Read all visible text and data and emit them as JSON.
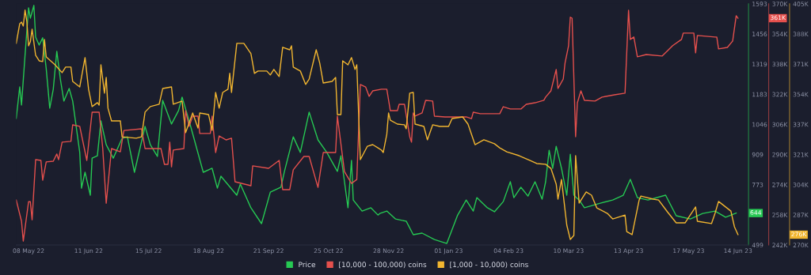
{
  "chart_data": {
    "type": "line",
    "legend": "bottom",
    "xlim": [
      "2022-05-01",
      "2023-06-20"
    ],
    "xticks": [
      {
        "value": "2022-05-08",
        "label": "08 May 22"
      },
      {
        "value": "2022-06-11",
        "label": "11 Jun 22"
      },
      {
        "value": "2022-07-15",
        "label": "15 Jul 22"
      },
      {
        "value": "2022-08-18",
        "label": "18 Aug 22"
      },
      {
        "value": "2022-09-21",
        "label": "21 Sep 22"
      },
      {
        "value": "2022-10-25",
        "label": "25 Oct 22"
      },
      {
        "value": "2022-11-28",
        "label": "28 Nov 22"
      },
      {
        "value": "2023-01-01",
        "label": "01 Jan 23"
      },
      {
        "value": "2023-02-04",
        "label": "04 Feb 23"
      },
      {
        "value": "2023-03-10",
        "label": "10 Mar 23"
      },
      {
        "value": "2023-04-13",
        "label": "13 Apr 23"
      },
      {
        "value": "2023-05-17",
        "label": "17 May 23"
      },
      {
        "value": "2023-06-14",
        "label": "14 Jun 23"
      }
    ],
    "ylim": [
      499,
      1593
    ],
    "yticks": [
      499,
      {
        "value": 772.5,
        "label": "773"
      },
      {
        "value": 909.25,
        "label": "909"
      },
      1046,
      {
        "value": 1182.75,
        "label": "1183"
      },
      {
        "value": 1319.5,
        "label": "1319"
      },
      {
        "value": 1456.25,
        "label": "1456"
      },
      1593
    ],
    "y2lim": [
      242000,
      370000
    ],
    "y2ticks": [
      {
        "value": 242000,
        "label": "242K"
      },
      {
        "value": 258000,
        "label": "258K"
      },
      {
        "value": 274000,
        "label": "274K"
      },
      {
        "value": 290000,
        "label": "290K"
      },
      {
        "value": 306000,
        "label": "306K"
      },
      {
        "value": 322000,
        "label": "322K"
      },
      {
        "value": 338000,
        "label": "338K"
      },
      {
        "value": 354000,
        "label": "354K"
      },
      {
        "value": 370000,
        "label": "370K"
      }
    ],
    "y3lim": [
      270000,
      405000
    ],
    "y3ticks": [
      {
        "value": 270000,
        "label": "270K"
      },
      {
        "value": 286875,
        "label": "287K"
      },
      {
        "value": 303750,
        "label": "304K"
      },
      {
        "value": 320625,
        "label": "321K"
      },
      {
        "value": 337500,
        "label": "337K"
      },
      {
        "value": 354375,
        "label": "354K"
      },
      {
        "value": 371250,
        "label": "371K"
      },
      {
        "value": 388125,
        "label": "388K"
      },
      {
        "value": 405000,
        "label": "405K"
      }
    ],
    "annotations": [
      "644",
      "361K",
      "276K"
    ],
    "series": [
      {
        "name": "Price",
        "color": "#26c953",
        "axis": "y",
        "x": [
          "2022-05-01",
          "2022-05-03",
          "2022-05-04",
          "2022-05-06",
          "2022-05-08",
          "2022-05-09",
          "2022-05-11",
          "2022-05-12",
          "2022-05-14",
          "2022-05-16",
          "2022-05-18",
          "2022-05-20",
          "2022-05-22",
          "2022-05-24",
          "2022-05-26",
          "2022-05-28",
          "2022-05-31",
          "2022-06-02",
          "2022-06-06",
          "2022-06-07",
          "2022-06-09",
          "2022-06-12",
          "2022-06-13",
          "2022-06-16",
          "2022-06-18",
          "2022-06-21",
          "2022-06-25",
          "2022-06-30",
          "2022-07-03",
          "2022-07-07",
          "2022-07-13",
          "2022-07-16",
          "2022-07-20",
          "2022-07-23",
          "2022-07-28",
          "2022-08-01",
          "2022-08-03",
          "2022-08-07",
          "2022-08-15",
          "2022-08-20",
          "2022-08-23",
          "2022-08-25",
          "2022-09-03",
          "2022-09-05",
          "2022-09-11",
          "2022-09-17",
          "2022-09-22",
          "2022-09-28",
          "2022-09-30",
          "2022-10-05",
          "2022-10-09",
          "2022-10-14",
          "2022-10-19",
          "2022-10-24",
          "2022-10-30",
          "2022-11-01",
          "2022-11-02",
          "2022-11-05",
          "2022-11-07",
          "2022-11-08",
          "2022-11-13",
          "2022-11-18",
          "2022-11-22",
          "2022-11-23",
          "2022-11-27",
          "2022-12-02",
          "2022-12-08",
          "2022-12-12",
          "2022-12-17",
          "2022-12-24",
          "2022-12-31",
          "2023-01-06",
          "2023-01-11",
          "2023-01-15",
          "2023-01-17",
          "2023-01-23",
          "2023-01-27",
          "2023-02-01",
          "2023-02-05",
          "2023-02-07",
          "2023-02-11",
          "2023-02-15",
          "2023-02-19",
          "2023-02-23",
          "2023-02-25",
          "2023-02-27",
          "2023-03-01",
          "2023-03-03",
          "2023-03-06",
          "2023-03-09",
          "2023-03-11",
          "2023-03-13",
          "2023-03-16",
          "2023-03-19",
          "2023-03-28",
          "2023-04-04",
          "2023-04-10",
          "2023-04-14",
          "2023-04-18",
          "2023-04-24",
          "2023-05-04",
          "2023-05-10",
          "2023-05-18",
          "2023-05-25",
          "2023-06-01",
          "2023-06-07",
          "2023-06-13"
        ],
        "values": [
          1073,
          1216,
          1134,
          1360,
          1575,
          1528,
          1586,
          1442,
          1406,
          1439,
          1299,
          1120,
          1206,
          1378,
          1252,
          1152,
          1209,
          1152,
          919,
          757,
          829,
          725,
          893,
          904,
          1062,
          954,
          893,
          983,
          990,
          829,
          1037,
          954,
          901,
          1155,
          1048,
          1109,
          1170,
          1062,
          829,
          847,
          757,
          811,
          725,
          775,
          668,
          596,
          739,
          761,
          833,
          990,
          919,
          1102,
          976,
          919,
          833,
          904,
          847,
          668,
          883,
          703,
          653,
          668,
          635,
          642,
          653,
          617,
          607,
          546,
          553,
          524,
          506,
          632,
          703,
          653,
          714,
          668,
          650,
          696,
          786,
          714,
          761,
          721,
          786,
          707,
          786,
          929,
          847,
          947,
          847,
          725,
          911,
          725,
          703,
          668,
          689,
          703,
          725,
          797,
          714,
          703,
          725,
          632,
          617,
          642,
          653,
          625,
          644
        ]
      },
      {
        "name": "[10,000 - 100,000) coins",
        "color": "#e5504d",
        "axis": "y2",
        "x": [
          "2022-05-01",
          "2022-05-04",
          "2022-05-05",
          "2022-05-08",
          "2022-05-09",
          "2022-05-10",
          "2022-05-12",
          "2022-05-15",
          "2022-05-16",
          "2022-05-18",
          "2022-05-22",
          "2022-05-24",
          "2022-05-25",
          "2022-05-27",
          "2022-06-01",
          "2022-06-02",
          "2022-06-06",
          "2022-06-10",
          "2022-06-13",
          "2022-06-17",
          "2022-06-19",
          "2022-06-21",
          "2022-06-24",
          "2022-06-29",
          "2022-07-01",
          "2022-07-11",
          "2022-07-13",
          "2022-07-22",
          "2022-07-24",
          "2022-07-26",
          "2022-07-27",
          "2022-07-28",
          "2022-07-29",
          "2022-08-04",
          "2022-08-05",
          "2022-08-07",
          "2022-08-09",
          "2022-08-12",
          "2022-08-13",
          "2022-08-19",
          "2022-08-20",
          "2022-08-22",
          "2022-08-24",
          "2022-08-28",
          "2022-08-31",
          "2022-09-02",
          "2022-09-11",
          "2022-09-12",
          "2022-09-21",
          "2022-09-27",
          "2022-09-29",
          "2022-10-03",
          "2022-10-05",
          "2022-10-11",
          "2022-10-14",
          "2022-10-19",
          "2022-10-22",
          "2022-10-29",
          "2022-10-30",
          "2022-11-03",
          "2022-11-07",
          "2022-11-10",
          "2022-11-12",
          "2022-11-15",
          "2022-11-17",
          "2022-11-19",
          "2022-11-24",
          "2022-11-27",
          "2022-11-29",
          "2022-12-03",
          "2022-12-04",
          "2022-12-07",
          "2022-12-10",
          "2022-12-11",
          "2022-12-12",
          "2022-12-13",
          "2022-12-17",
          "2022-12-19",
          "2022-12-23",
          "2022-12-24",
          "2022-12-30",
          "2023-01-11",
          "2023-01-14",
          "2023-01-15",
          "2023-01-19",
          "2023-01-30",
          "2023-02-01",
          "2023-02-05",
          "2023-02-11",
          "2023-02-14",
          "2023-02-19",
          "2023-02-24",
          "2023-02-25",
          "2023-02-28",
          "2023-03-03",
          "2023-03-04",
          "2023-03-07",
          "2023-03-08",
          "2023-03-10",
          "2023-03-11",
          "2023-03-12",
          "2023-03-14",
          "2023-03-15",
          "2023-03-17",
          "2023-03-19",
          "2023-03-25",
          "2023-03-29",
          "2023-04-05",
          "2023-04-11",
          "2023-04-13",
          "2023-04-14",
          "2023-04-16",
          "2023-04-18",
          "2023-04-23",
          "2023-05-02",
          "2023-05-08",
          "2023-05-13",
          "2023-05-14",
          "2023-05-20",
          "2023-05-21",
          "2023-05-22",
          "2023-06-01",
          "2023-06-02",
          "2023-06-03",
          "2023-06-08",
          "2023-06-11",
          "2023-06-13",
          "2023-06-14"
        ],
        "values": [
          265900,
          254600,
          244100,
          265000,
          265000,
          255400,
          287300,
          286900,
          276400,
          286100,
          286500,
          290300,
          287300,
          296600,
          297000,
          305800,
          305000,
          286900,
          312500,
          312500,
          293600,
          264200,
          293200,
          291500,
          302800,
          303700,
          293200,
          293200,
          284800,
          284800,
          296600,
          283500,
          292400,
          293200,
          313300,
          305000,
          310400,
          310400,
          301200,
          301200,
          310400,
          291100,
          299900,
          297800,
          298700,
          275600,
          273500,
          284000,
          282700,
          286900,
          271400,
          271400,
          281900,
          289000,
          289000,
          272600,
          291100,
          291100,
          310400,
          281000,
          274700,
          276800,
          327200,
          325900,
          320900,
          323800,
          324700,
          324700,
          313300,
          313300,
          316700,
          316700,
          299500,
          296600,
          312100,
          310400,
          312100,
          318800,
          318400,
          310400,
          310000,
          310000,
          309100,
          312500,
          311700,
          311700,
          315400,
          314200,
          314200,
          316700,
          317500,
          318800,
          320500,
          323800,
          335200,
          325100,
          330100,
          338500,
          347800,
          362900,
          362400,
          299500,
          317500,
          323800,
          318800,
          318400,
          320500,
          321700,
          322600,
          366600,
          351100,
          352400,
          341900,
          343100,
          342300,
          347800,
          351100,
          354500,
          354500,
          344000,
          353200,
          352400,
          352400,
          346100,
          346900,
          350300,
          363700,
          362400
        ]
      },
      {
        "name": "[1,000 - 10,000) coins",
        "color": "#f2b630",
        "axis": "y3",
        "x": [
          "2022-05-01",
          "2022-05-03",
          "2022-05-04",
          "2022-05-05",
          "2022-05-06",
          "2022-05-07",
          "2022-05-08",
          "2022-05-09",
          "2022-05-10",
          "2022-05-12",
          "2022-05-14",
          "2022-05-16",
          "2022-05-17",
          "2022-05-18",
          "2022-05-23",
          "2022-05-25",
          "2022-05-27",
          "2022-05-29",
          "2022-06-01",
          "2022-06-02",
          "2022-06-06",
          "2022-06-09",
          "2022-06-11",
          "2022-06-13",
          "2022-06-16",
          "2022-06-17",
          "2022-06-18",
          "2022-06-20",
          "2022-06-21",
          "2022-06-22",
          "2022-06-24",
          "2022-06-29",
          "2022-06-30",
          "2022-07-08",
          "2022-07-11",
          "2022-07-13",
          "2022-07-16",
          "2022-07-21",
          "2022-07-23",
          "2022-07-28",
          "2022-07-29",
          "2022-08-03",
          "2022-08-05",
          "2022-08-09",
          "2022-08-12",
          "2022-08-13",
          "2022-08-18",
          "2022-08-20",
          "2022-08-22",
          "2022-08-24",
          "2022-08-26",
          "2022-08-29",
          "2022-08-30",
          "2022-08-31",
          "2022-09-03",
          "2022-09-07",
          "2022-09-11",
          "2022-09-13",
          "2022-09-15",
          "2022-09-20",
          "2022-09-22",
          "2022-09-24",
          "2022-09-27",
          "2022-09-29",
          "2022-10-03",
          "2022-10-04",
          "2022-10-05",
          "2022-10-09",
          "2022-10-12",
          "2022-10-14",
          "2022-10-18",
          "2022-10-20",
          "2022-10-22",
          "2022-10-27",
          "2022-10-29",
          "2022-10-30",
          "2022-11-01",
          "2022-11-02",
          "2022-11-05",
          "2022-11-07",
          "2022-11-09",
          "2022-11-10",
          "2022-11-12",
          "2022-11-16",
          "2022-11-19",
          "2022-11-22",
          "2022-11-24",
          "2022-11-25",
          "2022-11-27",
          "2022-11-28",
          "2022-11-29",
          "2022-12-03",
          "2022-12-07",
          "2022-12-08",
          "2022-12-10",
          "2022-12-12",
          "2022-12-13",
          "2022-12-18",
          "2022-12-20",
          "2022-12-23",
          "2022-12-27",
          "2023-01-01",
          "2023-01-03",
          "2023-01-09",
          "2023-01-12",
          "2023-01-16",
          "2023-01-21",
          "2023-01-27",
          "2023-01-30",
          "2023-02-03",
          "2023-02-10",
          "2023-02-16",
          "2023-02-20",
          "2023-02-25",
          "2023-02-28",
          "2023-03-03",
          "2023-03-04",
          "2023-03-06",
          "2023-03-09",
          "2023-03-11",
          "2023-03-13",
          "2023-03-14",
          "2023-03-16",
          "2023-03-20",
          "2023-03-23",
          "2023-03-26",
          "2023-04-01",
          "2023-04-04",
          "2023-04-11",
          "2023-04-12",
          "2023-04-15",
          "2023-04-19",
          "2023-04-20",
          "2023-04-27",
          "2023-04-30",
          "2023-05-05",
          "2023-05-10",
          "2023-05-15",
          "2023-05-21",
          "2023-05-22",
          "2023-05-30",
          "2023-06-01",
          "2023-06-03",
          "2023-06-07",
          "2023-06-10",
          "2023-06-12",
          "2023-06-14"
        ],
        "values": [
          382900,
          393900,
          394800,
          392600,
          401500,
          395300,
          381500,
          383800,
          390800,
          376200,
          373100,
          372700,
          385100,
          375300,
          370900,
          368700,
          366500,
          369600,
          369600,
          361600,
          358500,
          374900,
          357200,
          347500,
          349700,
          348300,
          370900,
          355000,
          363800,
          346600,
          339500,
          339500,
          330600,
          329800,
          330600,
          344400,
          347500,
          348800,
          357600,
          358500,
          348800,
          350600,
          332900,
          343900,
          335500,
          343900,
          343000,
          334200,
          355400,
          346600,
          355400,
          357200,
          366100,
          355400,
          382900,
          382900,
          377100,
          366100,
          367400,
          367400,
          365200,
          368300,
          364300,
          380700,
          379300,
          381500,
          369600,
          367400,
          359900,
          362900,
          379300,
          371800,
          360700,
          361600,
          363800,
          343000,
          343000,
          373100,
          370900,
          374900,
          368300,
          370900,
          317800,
          325300,
          326200,
          324400,
          323100,
          321800,
          332000,
          343900,
          339900,
          337700,
          337300,
          335100,
          355000,
          355400,
          337700,
          336400,
          328900,
          337300,
          336400,
          336400,
          340800,
          341700,
          337700,
          326200,
          328900,
          326700,
          324400,
          322200,
          320000,
          317400,
          315600,
          315200,
          312900,
          304100,
          295700,
          306700,
          281100,
          273100,
          275300,
          320000,
          293500,
          299700,
          297900,
          290800,
          287700,
          284600,
          286800,
          277500,
          275800,
          295200,
          297400,
          295700,
          295200,
          288600,
          282400,
          282400,
          291300,
          283300,
          282000,
          287700,
          294400,
          291300,
          289000,
          280200,
          275800
        ]
      }
    ]
  }
}
